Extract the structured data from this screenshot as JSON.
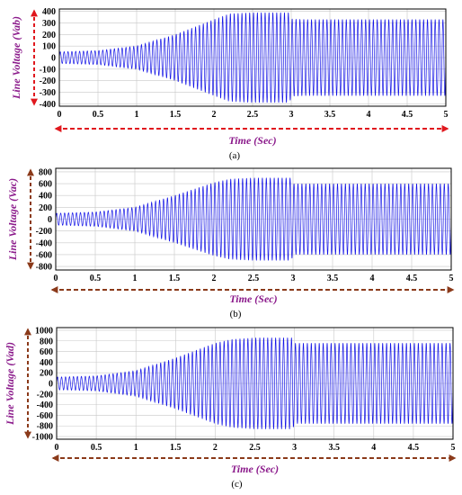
{
  "chart_data": [
    {
      "type": "line",
      "panel_label": "(a)",
      "ylabel": "Line Voltage (Vab)",
      "xlabel": "Time (Sec)",
      "xlim": [
        0,
        5
      ],
      "ylim": [
        -420,
        420
      ],
      "xticks": [
        "0",
        "0.5",
        "1",
        "1.5",
        "2",
        "2.5",
        "3",
        "3.5",
        "4",
        "4.5",
        "5"
      ],
      "yticks": [
        400,
        300,
        200,
        100,
        0,
        -100,
        -200,
        -300,
        -400
      ],
      "grid": true,
      "line_color": "#1414e6",
      "arrow_color": "#e0181e",
      "series": [
        {
          "envelope_t": [
            0,
            0.5,
            1,
            1.5,
            2,
            2.2,
            2.5,
            2.98,
            3.0,
            3.2,
            5
          ],
          "envelope_amplitude": [
            50,
            60,
            100,
            200,
            330,
            380,
            390,
            390,
            335,
            330,
            330
          ],
          "cycles": 100
        }
      ]
    },
    {
      "type": "line",
      "panel_label": "(b)",
      "ylabel": "Line Voltage (Vac)",
      "xlabel": "Time (Sec)",
      "xlim": [
        0,
        5
      ],
      "ylim": [
        -860,
        860
      ],
      "xticks": [
        "0",
        "0.5",
        "1",
        "1.5",
        "2",
        "2.5",
        "3",
        "3.5",
        "4",
        "4.5",
        "5"
      ],
      "yticks": [
        800,
        600,
        400,
        200,
        0,
        -200,
        -400,
        -600,
        -800
      ],
      "grid": true,
      "line_color": "#1414e6",
      "arrow_color": "#8b3a1a",
      "series": [
        {
          "envelope_t": [
            0,
            0.5,
            1,
            1.5,
            2,
            2.2,
            2.5,
            2.98,
            3.0,
            3.2,
            5
          ],
          "envelope_amplitude": [
            100,
            120,
            200,
            400,
            620,
            680,
            700,
            700,
            600,
            600,
            600
          ],
          "cycles": 100
        }
      ]
    },
    {
      "type": "line",
      "panel_label": "(c)",
      "ylabel": "Line Voltage (Vad)",
      "xlabel": "Time (Sec)",
      "xlim": [
        0,
        5
      ],
      "ylim": [
        -1050,
        1050
      ],
      "xticks": [
        "0",
        "0.5",
        "1",
        "1.5",
        "2",
        "2.5",
        "3",
        "3.5",
        "4",
        "4.5",
        "5"
      ],
      "yticks": [
        1000,
        800,
        600,
        400,
        200,
        0,
        -200,
        -400,
        -600,
        -800,
        -1000
      ],
      "grid": true,
      "line_color": "#1414e6",
      "arrow_color": "#8b3a1a",
      "series": [
        {
          "envelope_t": [
            0,
            0.5,
            1,
            1.5,
            2,
            2.2,
            2.5,
            2.98,
            3.0,
            3.2,
            5
          ],
          "envelope_amplitude": [
            120,
            140,
            240,
            480,
            760,
            830,
            860,
            860,
            760,
            760,
            760
          ],
          "cycles": 100
        }
      ]
    }
  ]
}
